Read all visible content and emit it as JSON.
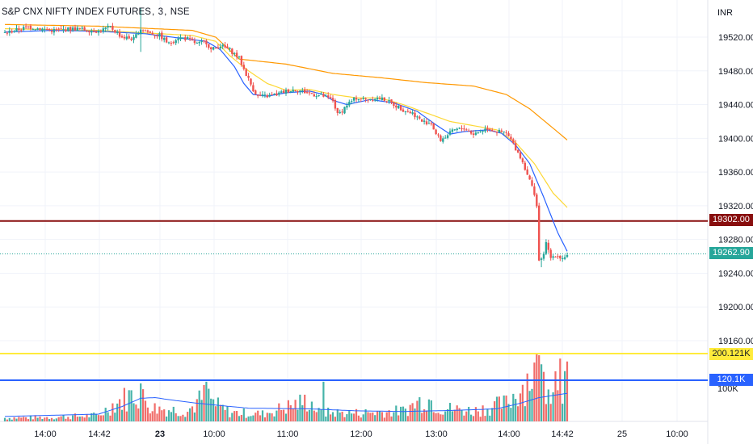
{
  "title": {
    "symbol": "S&P CNX NIFTY INDEX FUTURES",
    "interval": "3",
    "exchange": "NSE"
  },
  "currency": "INR",
  "badges": {
    "resistance": "19302.00",
    "last_price": "19262.90",
    "vol_high": "200.121K",
    "vol_avg": "120.1K"
  },
  "colors": {
    "up": "#26a69a",
    "down": "#ef5350",
    "ma_fast": "#2962ff",
    "ma_mid": "#fdd835",
    "ma_slow": "#ff9800",
    "resistance_line": "#880e0e",
    "vol_high_line": "#ffeb3b",
    "vol_avg_line": "#2962ff",
    "grid": "#f0f3fa"
  },
  "chart_data": {
    "type": "candlestick",
    "price_axis": {
      "ticks": [
        "19520.00",
        "19480.00",
        "19440.00",
        "19400.00",
        "19360.00",
        "19320.00",
        "19280.00",
        "19240.00",
        "19200.00",
        "19160.00"
      ],
      "range": [
        19152,
        19544
      ]
    },
    "volume_axis": {
      "ticks": [
        "100K"
      ],
      "range": [
        0,
        210000
      ]
    },
    "time_axis": {
      "ticks": [
        {
          "label": "14:00",
          "bold": false
        },
        {
          "label": "14:42",
          "bold": false
        },
        {
          "label": "23",
          "bold": true
        },
        {
          "label": "10:00",
          "bold": false
        },
        {
          "label": "11:00",
          "bold": false
        },
        {
          "label": "12:00",
          "bold": false
        },
        {
          "label": "13:00",
          "bold": false
        },
        {
          "label": "14:00",
          "bold": false
        },
        {
          "label": "14:42",
          "bold": false
        },
        {
          "label": "25",
          "bold": false
        },
        {
          "label": "10:00",
          "bold": false
        }
      ]
    },
    "horizontal_levels": {
      "resistance": 19302.0,
      "last_price": 19262.9,
      "vol_high": 200121,
      "vol_avg": 120100
    },
    "price_keypoints": [
      [
        0,
        19525
      ],
      [
        10,
        19532
      ],
      [
        20,
        19528
      ],
      [
        30,
        19530
      ],
      [
        40,
        19527
      ],
      [
        45,
        19532
      ],
      [
        50,
        19520
      ],
      [
        55,
        19518
      ],
      [
        58,
        19530
      ],
      [
        62,
        19525
      ],
      [
        66,
        19522
      ],
      [
        70,
        19512
      ],
      [
        74,
        19520
      ],
      [
        78,
        19518
      ],
      [
        82,
        19512
      ],
      [
        86,
        19514
      ],
      [
        88,
        19505
      ],
      [
        92,
        19510
      ],
      [
        96,
        19505
      ],
      [
        100,
        19495
      ],
      [
        102,
        19482
      ],
      [
        104,
        19470
      ],
      [
        106,
        19458
      ],
      [
        108,
        19450
      ],
      [
        112,
        19450
      ],
      [
        116,
        19452
      ],
      [
        120,
        19456
      ],
      [
        124,
        19458
      ],
      [
        128,
        19455
      ],
      [
        132,
        19452
      ],
      [
        136,
        19450
      ],
      [
        140,
        19445
      ],
      [
        142,
        19428
      ],
      [
        144,
        19433
      ],
      [
        146,
        19440
      ],
      [
        150,
        19448
      ],
      [
        154,
        19446
      ],
      [
        158,
        19448
      ],
      [
        162,
        19446
      ],
      [
        166,
        19440
      ],
      [
        170,
        19434
      ],
      [
        174,
        19430
      ],
      [
        178,
        19420
      ],
      [
        182,
        19418
      ],
      [
        184,
        19405
      ],
      [
        186,
        19398
      ],
      [
        188,
        19402
      ],
      [
        192,
        19410
      ],
      [
        196,
        19412
      ],
      [
        200,
        19405
      ],
      [
        204,
        19410
      ],
      [
        206,
        19412
      ],
      [
        210,
        19408
      ],
      [
        214,
        19406
      ],
      [
        216,
        19398
      ],
      [
        218,
        19388
      ],
      [
        220,
        19378
      ],
      [
        222,
        19365
      ],
      [
        224,
        19350
      ],
      [
        226,
        19335
      ],
      [
        228,
        19305
      ],
      [
        229,
        19255
      ],
      [
        231,
        19275
      ],
      [
        233,
        19258
      ],
      [
        235,
        19262
      ],
      [
        238,
        19258
      ],
      [
        240,
        19262
      ]
    ],
    "ma_fast_keypoints": [
      [
        0,
        19526
      ],
      [
        20,
        19528
      ],
      [
        40,
        19527
      ],
      [
        60,
        19524
      ],
      [
        80,
        19517
      ],
      [
        86,
        19515
      ],
      [
        92,
        19505
      ],
      [
        98,
        19485
      ],
      [
        102,
        19465
      ],
      [
        106,
        19452
      ],
      [
        112,
        19450
      ],
      [
        120,
        19454
      ],
      [
        130,
        19456
      ],
      [
        136,
        19452
      ],
      [
        140,
        19445
      ],
      [
        146,
        19440
      ],
      [
        156,
        19446
      ],
      [
        166,
        19442
      ],
      [
        176,
        19432
      ],
      [
        184,
        19416
      ],
      [
        190,
        19405
      ],
      [
        196,
        19408
      ],
      [
        206,
        19410
      ],
      [
        212,
        19406
      ],
      [
        218,
        19392
      ],
      [
        224,
        19370
      ],
      [
        230,
        19330
      ],
      [
        236,
        19288
      ],
      [
        240,
        19266
      ]
    ],
    "ma_mid_keypoints": [
      [
        0,
        19530
      ],
      [
        40,
        19528
      ],
      [
        80,
        19522
      ],
      [
        90,
        19515
      ],
      [
        96,
        19498
      ],
      [
        104,
        19480
      ],
      [
        112,
        19465
      ],
      [
        120,
        19457
      ],
      [
        130,
        19458
      ],
      [
        140,
        19452
      ],
      [
        150,
        19448
      ],
      [
        160,
        19448
      ],
      [
        170,
        19440
      ],
      [
        180,
        19430
      ],
      [
        190,
        19420
      ],
      [
        200,
        19415
      ],
      [
        210,
        19410
      ],
      [
        218,
        19395
      ],
      [
        226,
        19370
      ],
      [
        234,
        19335
      ],
      [
        240,
        19318
      ]
    ],
    "ma_slow_keypoints": [
      [
        0,
        19535
      ],
      [
        40,
        19533
      ],
      [
        80,
        19528
      ],
      [
        90,
        19520
      ],
      [
        100,
        19494
      ],
      [
        120,
        19488
      ],
      [
        140,
        19477
      ],
      [
        160,
        19472
      ],
      [
        180,
        19466
      ],
      [
        200,
        19462
      ],
      [
        214,
        19452
      ],
      [
        224,
        19435
      ],
      [
        234,
        19412
      ],
      [
        240,
        19398
      ]
    ],
    "volume_keypoints": [
      [
        0,
        12000
      ],
      [
        20,
        14000
      ],
      [
        40,
        20000
      ],
      [
        46,
        55000
      ],
      [
        52,
        80000
      ],
      [
        56,
        95000
      ],
      [
        60,
        70000
      ],
      [
        64,
        45000
      ],
      [
        70,
        40000
      ],
      [
        78,
        35000
      ],
      [
        86,
        90000
      ],
      [
        90,
        55000
      ],
      [
        96,
        30000
      ],
      [
        110,
        25000
      ],
      [
        130,
        70000
      ],
      [
        134,
        30000
      ],
      [
        150,
        28000
      ],
      [
        170,
        35000
      ],
      [
        180,
        80000
      ],
      [
        186,
        45000
      ],
      [
        200,
        35000
      ],
      [
        214,
        60000
      ],
      [
        220,
        110000
      ],
      [
        226,
        170000
      ],
      [
        230,
        140000
      ],
      [
        236,
        150000
      ],
      [
        240,
        130000
      ]
    ],
    "vol_ma_keypoints": [
      [
        0,
        15000
      ],
      [
        40,
        22000
      ],
      [
        50,
        45000
      ],
      [
        58,
        70000
      ],
      [
        64,
        72000
      ],
      [
        72,
        64000
      ],
      [
        82,
        55000
      ],
      [
        92,
        48000
      ],
      [
        104,
        40000
      ],
      [
        130,
        38000
      ],
      [
        150,
        32000
      ],
      [
        170,
        30000
      ],
      [
        190,
        33000
      ],
      [
        210,
        38000
      ],
      [
        220,
        55000
      ],
      [
        228,
        72000
      ],
      [
        240,
        85000
      ]
    ]
  }
}
